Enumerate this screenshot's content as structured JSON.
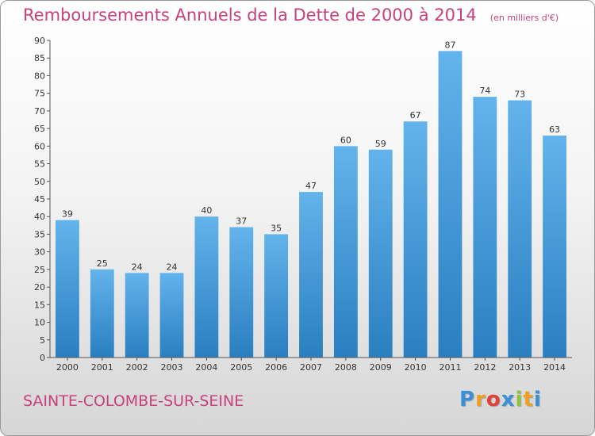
{
  "header": {
    "title": "Remboursements Annuels de la Dette de 2000 à 2014",
    "unit": "(en milliers d'€)"
  },
  "footer": {
    "town": "SAINTE-COLOMBE-SUR-SEINE",
    "logo_text": "Proxiti",
    "logo_letters": [
      "P",
      "r",
      "o",
      "x",
      "i",
      "t",
      "i"
    ],
    "logo_colors": [
      "#3a8fd6",
      "#f0a020",
      "#e0403a",
      "#3a8fd6",
      "#8cc63f",
      "#f0a020",
      "#3a8fd6"
    ]
  },
  "colors": {
    "bar_top": "#63b3ec",
    "bar_bottom": "#2a7fc0",
    "axis": "#555555",
    "label": "#333333"
  },
  "chart_data": {
    "type": "bar",
    "categories": [
      "2000",
      "2001",
      "2002",
      "2003",
      "2004",
      "2005",
      "2006",
      "2007",
      "2008",
      "2009",
      "2010",
      "2011",
      "2012",
      "2013",
      "2014"
    ],
    "values": [
      39,
      25,
      24,
      24,
      40,
      37,
      35,
      47,
      60,
      59,
      67,
      87,
      74,
      73,
      63
    ],
    "title": "Remboursements Annuels de la Dette de 2000 à 2014",
    "xlabel": "",
    "ylabel": "",
    "ylim": [
      0,
      90
    ],
    "yticks": [
      0,
      5,
      10,
      15,
      20,
      25,
      30,
      35,
      40,
      45,
      50,
      55,
      60,
      65,
      70,
      75,
      80,
      85,
      90
    ],
    "grid": false,
    "data_labels": true
  }
}
